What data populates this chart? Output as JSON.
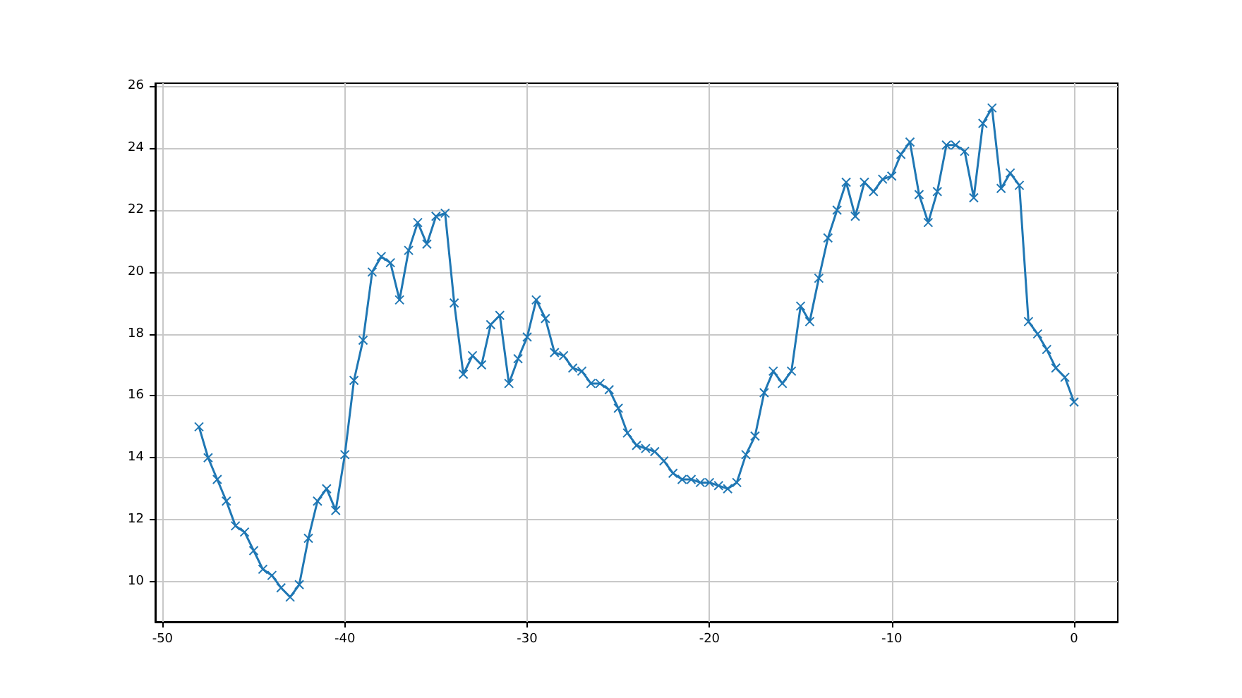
{
  "chart_data": {
    "type": "line",
    "x": [
      -48,
      -47.5,
      -47,
      -46.5,
      -46,
      -45.5,
      -45,
      -44.5,
      -44,
      -43.5,
      -43,
      -42.5,
      -42,
      -41.5,
      -41,
      -40.5,
      -40,
      -39.5,
      -39,
      -38.5,
      -38,
      -37.5,
      -37,
      -36.5,
      -36,
      -35.5,
      -35,
      -34.5,
      -34,
      -33.5,
      -33,
      -32.5,
      -32,
      -31.5,
      -31,
      -30.5,
      -30,
      -29.5,
      -29,
      -28.5,
      -28,
      -27.5,
      -27,
      -26.5,
      -26,
      -25.5,
      -25,
      -24.5,
      -24,
      -23.5,
      -23,
      -22.5,
      -22,
      -21.5,
      -21,
      -20.5,
      -20,
      -19.5,
      -19,
      -18.5,
      -18,
      -17.5,
      -17,
      -16.5,
      -16,
      -15.5,
      -15,
      -14.5,
      -14,
      -13.5,
      -13,
      -12.5,
      -12,
      -11.5,
      -11,
      -10.5,
      -10,
      -9.5,
      -9,
      -8.5,
      -8,
      -7.5,
      -7,
      -6.5,
      -6,
      -5.5,
      -5,
      -4.5,
      -4,
      -3.5,
      -3,
      -2.5,
      -2,
      -1.5,
      -1,
      -0.5,
      0
    ],
    "series": [
      {
        "color": "#1f77b4",
        "values": [
          15.0,
          14.0,
          13.3,
          12.6,
          11.8,
          11.6,
          11.0,
          10.4,
          10.2,
          9.8,
          9.5,
          9.9,
          11.4,
          12.6,
          13.0,
          12.3,
          14.1,
          16.5,
          17.8,
          20.0,
          20.5,
          20.3,
          19.1,
          20.7,
          21.6,
          20.9,
          21.8,
          21.9,
          19.0,
          16.7,
          17.3,
          17.0,
          18.3,
          18.6,
          16.4,
          17.2,
          17.9,
          19.1,
          18.5,
          17.4,
          17.3,
          16.9,
          16.8,
          16.4,
          16.4,
          16.2,
          15.6,
          14.8,
          14.4,
          14.3,
          14.2,
          13.9,
          13.5,
          13.3,
          13.3,
          13.2,
          13.2,
          13.1,
          13.0,
          13.2,
          14.1,
          14.7,
          16.1,
          16.8,
          16.4,
          16.8,
          18.9,
          18.4,
          19.8,
          21.1,
          22.0,
          22.9,
          21.8,
          22.9,
          22.6,
          23.0,
          23.1,
          23.8,
          24.2,
          22.5,
          21.6,
          22.6,
          24.1,
          24.1,
          23.9,
          22.4,
          24.8,
          25.3,
          22.7,
          23.2,
          22.8,
          18.4,
          18.0,
          17.5,
          16.9,
          16.6,
          15.8
        ]
      }
    ],
    "xlim": [
      -50.4,
      2.4
    ],
    "ylim": [
      8.7,
      26.1
    ],
    "xticks": [
      -50,
      -40,
      -30,
      -20,
      -10,
      0
    ],
    "yticks": [
      10,
      12,
      14,
      16,
      18,
      20,
      22,
      24,
      26
    ],
    "grid": true,
    "marker": "cross",
    "line_style": "solid"
  }
}
